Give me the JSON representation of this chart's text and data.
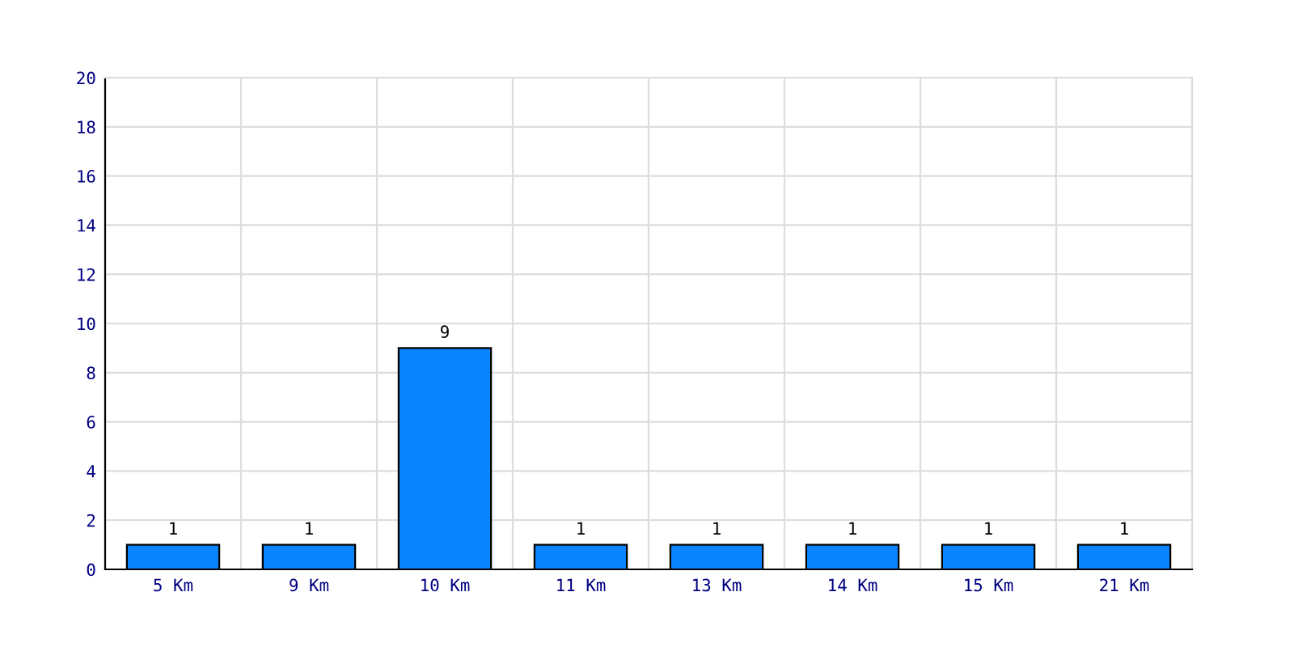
{
  "chart_data": {
    "type": "bar",
    "categories": [
      "5 Km",
      "9 Km",
      "10 Km",
      "11 Km",
      "13 Km",
      "14 Km",
      "15 Km",
      "21 Km"
    ],
    "values": [
      1,
      1,
      9,
      1,
      1,
      1,
      1,
      1
    ],
    "color": "#0a84ff",
    "ylim": [
      0,
      20
    ],
    "yticks": [
      0,
      2,
      4,
      6,
      8,
      10,
      12,
      14,
      16,
      18,
      20
    ],
    "grid": true,
    "data_labels": true
  }
}
